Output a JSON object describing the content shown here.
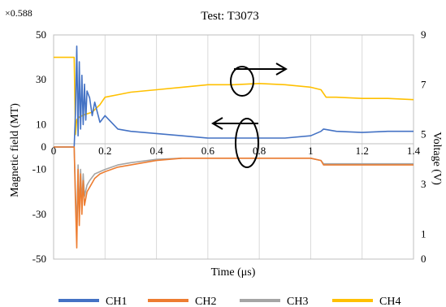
{
  "chart_data": {
    "type": "line",
    "title": "Test: T3073",
    "corner_note": "×0.588",
    "xlabel": "Time (μs)",
    "ylabel_left": "Magnetic field (MT)",
    "ylabel_right": "Voltage (V)",
    "xlim": [
      0,
      1.4
    ],
    "ylim_left": [
      -50,
      50
    ],
    "ylim_right": [
      0,
      9
    ],
    "x_ticks": [
      "0",
      "0.2",
      "0.4",
      "0.6",
      "0.8",
      "1",
      "1.2",
      "1.4"
    ],
    "y_ticks_left": [
      "50",
      "30",
      "10",
      "0",
      "-10",
      "-30",
      "-50"
    ],
    "y_ticks_right": [
      "9",
      "7",
      "5",
      "3",
      "1",
      "0"
    ],
    "grid": "vertical",
    "legend_position": "bottom",
    "series": [
      {
        "name": "CH1",
        "color": "#4472C4",
        "axis": "left",
        "x": [
          0,
          0.08,
          0.085,
          0.09,
          0.095,
          0.1,
          0.105,
          0.11,
          0.115,
          0.12,
          0.125,
          0.13,
          0.14,
          0.15,
          0.16,
          0.18,
          0.2,
          0.25,
          0.3,
          0.4,
          0.5,
          0.6,
          0.7,
          0.8,
          0.9,
          1.0,
          1.04,
          1.05,
          1.1,
          1.2,
          1.3,
          1.4
        ],
        "y": [
          0,
          0,
          15,
          45,
          5,
          38,
          8,
          32,
          10,
          28,
          12,
          25,
          22,
          14,
          20,
          11,
          14,
          8,
          7,
          6,
          5,
          4,
          4,
          4,
          4,
          5,
          7,
          8,
          7,
          6.5,
          7,
          7
        ]
      },
      {
        "name": "CH2",
        "color": "#ED7D31",
        "axis": "left",
        "x": [
          0,
          0.08,
          0.085,
          0.09,
          0.095,
          0.1,
          0.105,
          0.11,
          0.115,
          0.12,
          0.13,
          0.14,
          0.16,
          0.18,
          0.2,
          0.25,
          0.3,
          0.4,
          0.5,
          0.6,
          0.7,
          0.8,
          0.9,
          1.0,
          1.04,
          1.05,
          1.1,
          1.2,
          1.3,
          1.4
        ],
        "y": [
          0,
          0,
          -25,
          -45,
          -10,
          -35,
          -12,
          -30,
          -15,
          -26,
          -20,
          -18,
          -14,
          -12,
          -11,
          -9,
          -8,
          -6,
          -5,
          -5,
          -5,
          -5,
          -5,
          -5,
          -6,
          -8,
          -8,
          -8,
          -8,
          -8
        ]
      },
      {
        "name": "CH3",
        "color": "#A5A5A5",
        "axis": "left",
        "x": [
          0,
          0.08,
          0.085,
          0.09,
          0.095,
          0.1,
          0.105,
          0.11,
          0.115,
          0.12,
          0.13,
          0.14,
          0.16,
          0.18,
          0.2,
          0.25,
          0.3,
          0.4,
          0.5,
          0.6,
          0.7,
          0.8,
          0.9,
          1.0,
          1.04,
          1.05,
          1.1,
          1.2,
          1.3,
          1.4
        ],
        "y": [
          0,
          0,
          -20,
          -38,
          -8,
          -30,
          -10,
          -26,
          -12,
          -22,
          -17,
          -15,
          -12,
          -11,
          -10,
          -8,
          -7,
          -5.5,
          -5,
          -5,
          -5,
          -5,
          -5,
          -5,
          -6,
          -7.5,
          -7.5,
          -7.5,
          -7.5,
          -7.5
        ]
      },
      {
        "name": "CH4",
        "color": "#FFC000",
        "axis": "right",
        "x": [
          0,
          0.08,
          0.085,
          0.09,
          0.1,
          0.12,
          0.15,
          0.18,
          0.2,
          0.25,
          0.3,
          0.4,
          0.5,
          0.6,
          0.7,
          0.8,
          0.9,
          1.0,
          1.04,
          1.06,
          1.1,
          1.2,
          1.3,
          1.4
        ],
        "y": [
          8.1,
          8.1,
          5.0,
          5.6,
          5.7,
          5.8,
          5.9,
          6.2,
          6.5,
          6.6,
          6.7,
          6.8,
          6.9,
          7.0,
          7.0,
          7.05,
          7.0,
          6.9,
          6.8,
          6.5,
          6.5,
          6.45,
          6.45,
          6.4
        ]
      }
    ]
  }
}
